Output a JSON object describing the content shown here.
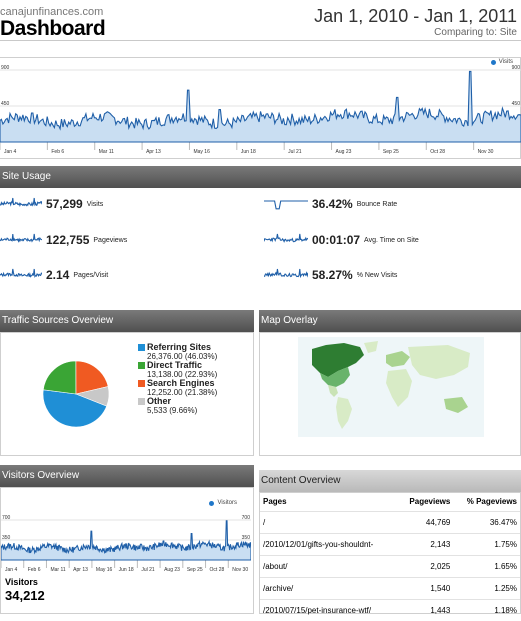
{
  "header": {
    "site": "canajunfinances.com",
    "title": "Dashboard",
    "date_range": "Jan 1, 2010 - Jan 1, 2011",
    "comparing": "Comparing to: Site"
  },
  "main_chart": {
    "legend": "Visits",
    "y_left": [
      "900",
      "450"
    ],
    "y_right": [
      "900",
      "450"
    ],
    "x_ticks": [
      "Jan 4",
      "Feb 6",
      "Mar 11",
      "Apr 13",
      "May 16",
      "Jun 18",
      "Jul 21",
      "Aug 23",
      "Sep 25",
      "Oct 28",
      "Nov 30"
    ]
  },
  "site_usage": {
    "heading": "Site Usage",
    "metrics": [
      {
        "value": "57,299",
        "label": "Visits"
      },
      {
        "value": "122,755",
        "label": "Pageviews"
      },
      {
        "value": "2.14",
        "label": "Pages/Visit"
      },
      {
        "value": "36.42%",
        "label": "Bounce Rate"
      },
      {
        "value": "00:01:07",
        "label": "Avg. Time on Site"
      },
      {
        "value": "58.27%",
        "label": "% New Visits"
      }
    ]
  },
  "traffic": {
    "heading": "Traffic Sources Overview",
    "sources": [
      {
        "name": "Referring Sites",
        "detail": "26,376.00 (46.03%)",
        "color": "#1f8fd6",
        "pct": 46.03
      },
      {
        "name": "Direct Traffic",
        "detail": "13,138.00 (22.93%)",
        "color": "#3aa535",
        "pct": 22.93
      },
      {
        "name": "Search Engines",
        "detail": "12,252.00 (21.38%)",
        "color": "#f05a22",
        "pct": 21.38
      },
      {
        "name": "Other",
        "detail": "5,533 (9.66%)",
        "color": "#c8c8c8",
        "pct": 9.66
      }
    ]
  },
  "map": {
    "heading": "Map Overlay"
  },
  "visitors": {
    "heading": "Visitors Overview",
    "legend": "Visitors",
    "y_left": [
      "700",
      "350"
    ],
    "y_right": [
      "700",
      "350"
    ],
    "x_ticks": [
      "Jan 4",
      "Feb 6",
      "Mar 11",
      "Apr 13",
      "May 16",
      "Jun 18",
      "Jul 21",
      "Aug 23",
      "Sep 25",
      "Oct 28",
      "Nov 30"
    ],
    "total_label": "Visitors",
    "total_value": "34,212"
  },
  "content": {
    "heading": "Content Overview",
    "columns": [
      "Pages",
      "Pageviews",
      "% Pageviews"
    ],
    "rows": [
      {
        "page": "/",
        "views": "44,769",
        "pct": "36.47%"
      },
      {
        "page": "/2010/12/01/gifts-you-shouldnt-",
        "views": "2,143",
        "pct": "1.75%"
      },
      {
        "page": "/about/",
        "views": "2,025",
        "pct": "1.65%"
      },
      {
        "page": "/archive/",
        "views": "1,540",
        "pct": "1.25%"
      },
      {
        "page": "/2010/07/15/pet-insurance-wtf/",
        "views": "1,443",
        "pct": "1.18%"
      }
    ]
  }
}
